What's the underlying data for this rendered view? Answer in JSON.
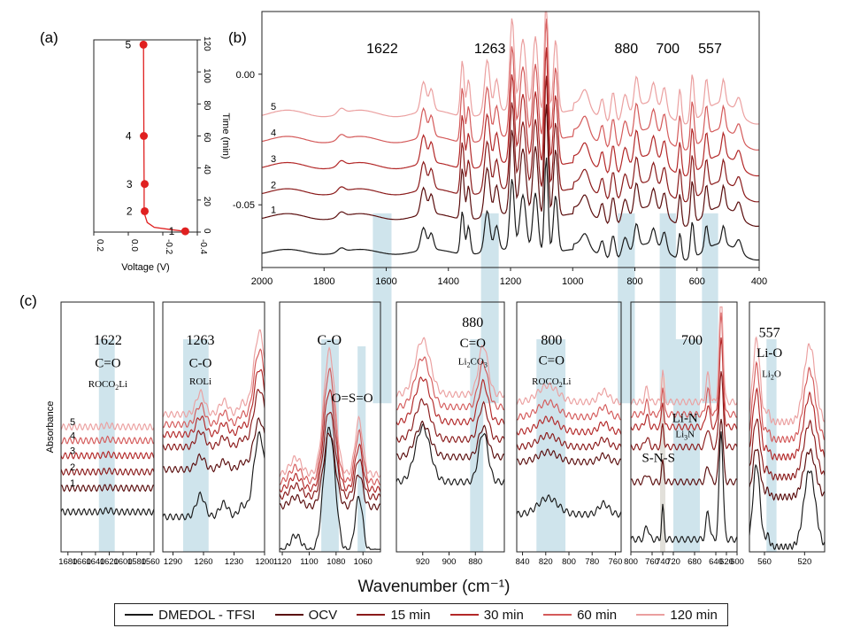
{
  "panel_labels": [
    "(a)",
    "(b)",
    "(c)"
  ],
  "main_xlabel": "Wavenumber (cm⁻¹)",
  "series_colors": [
    "#1a1a1a",
    "#5a0d0d",
    "#8a1a1a",
    "#b32828",
    "#d45a5a",
    "#eba0a0"
  ],
  "legend": [
    {
      "label": "DMEDOL - TFSI",
      "color": "#1a1a1a"
    },
    {
      "label": "OCV",
      "color": "#5a0d0d"
    },
    {
      "label": "15 min",
      "color": "#8a1a1a"
    },
    {
      "label": "30 min",
      "color": "#b32828"
    },
    {
      "label": "60 min",
      "color": "#d45a5a"
    },
    {
      "label": "120 min",
      "color": "#eba0a0"
    }
  ],
  "chart_data": [
    {
      "id": "a",
      "type": "scatter",
      "xlabel": "Voltage (V)",
      "ylabel": "Time (min)",
      "x_reversed": true,
      "xlim": [
        0.2,
        -0.4
      ],
      "ylim": [
        0,
        120
      ],
      "xticks": [
        "0.2",
        "0.0",
        "-0.2",
        "-0.4"
      ],
      "yticks": [
        "0",
        "20",
        "40",
        "60",
        "80",
        "100",
        "120"
      ],
      "curve": [
        [
          -0.33,
          0.5
        ],
        [
          -0.25,
          1.5
        ],
        [
          -0.15,
          3
        ],
        [
          -0.11,
          6
        ],
        [
          -0.095,
          11
        ],
        [
          -0.092,
          15
        ],
        [
          -0.092,
          28
        ],
        [
          -0.09,
          60
        ],
        [
          -0.088,
          117
        ]
      ],
      "points": [
        {
          "label": "1",
          "x": -0.33,
          "y": 0.5
        },
        {
          "label": "2",
          "x": -0.095,
          "y": 13
        },
        {
          "label": "3",
          "x": -0.095,
          "y": 30
        },
        {
          "label": "4",
          "x": -0.09,
          "y": 60
        },
        {
          "label": "5",
          "x": -0.088,
          "y": 117
        }
      ],
      "point_color": "#e02020"
    },
    {
      "id": "b",
      "type": "line",
      "x_reversed": true,
      "xlim": [
        2000,
        400
      ],
      "ylim": [
        -0.074,
        0.024
      ],
      "xticks": [
        "2000",
        "1800",
        "1600",
        "1400",
        "1200",
        "1000",
        "800",
        "600",
        "400"
      ],
      "yticks": [
        {
          "value": 0.0,
          "label": "0.00"
        },
        {
          "value": -0.05,
          "label": "-0.05"
        }
      ],
      "bands": [
        {
          "label": "1622",
          "from": 1643,
          "to": 1583
        },
        {
          "label": "1263",
          "from": 1295,
          "to": 1238
        },
        {
          "label": "880",
          "from": 855,
          "to": 800
        },
        {
          "label": "700",
          "from": 720,
          "to": 668
        },
        {
          "label": "557",
          "from": 584,
          "to": 532
        }
      ],
      "curve_labels": [
        "1",
        "2",
        "3",
        "4",
        "5"
      ],
      "series": [
        {
          "name": "DMEDOL - TFSI",
          "offset": -0.068,
          "scale": 0.78
        },
        {
          "name": "OCV",
          "offset": -0.0545,
          "scale": 0.93
        },
        {
          "name": "15 min",
          "offset": -0.045,
          "scale": 0.96
        },
        {
          "name": "30 min",
          "offset": -0.035,
          "scale": 0.98
        },
        {
          "name": "60 min",
          "offset": -0.025,
          "scale": 1.0
        },
        {
          "name": "120 min",
          "offset": -0.015,
          "scale": 1.02
        }
      ],
      "peaks": [
        [
          1745,
          0.002,
          15
        ],
        [
          1480,
          0.011,
          12
        ],
        [
          1455,
          0.008,
          10
        ],
        [
          1355,
          0.021,
          8
        ],
        [
          1335,
          0.014,
          8
        ],
        [
          1275,
          0.02,
          12
        ],
        [
          1245,
          0.012,
          10
        ],
        [
          1195,
          0.035,
          10
        ],
        [
          1160,
          0.028,
          14
        ],
        [
          1120,
          0.03,
          12
        ],
        [
          1085,
          0.048,
          8
        ],
        [
          1055,
          0.028,
          10
        ],
        [
          960,
          0.006,
          16
        ],
        [
          905,
          0.008,
          10
        ],
        [
          870,
          0.012,
          10
        ],
        [
          832,
          0.009,
          12
        ],
        [
          795,
          0.012,
          10
        ],
        [
          740,
          0.008,
          10
        ],
        [
          705,
          0.009,
          10
        ],
        [
          655,
          0.013,
          7
        ],
        [
          615,
          0.018,
          8
        ],
        [
          570,
          0.012,
          8
        ],
        [
          515,
          0.009,
          8
        ],
        [
          465,
          0.006,
          12
        ]
      ]
    },
    {
      "id": "c1",
      "type": "line",
      "x_reversed": true,
      "xlim": [
        1690,
        1555
      ],
      "ylim": [
        0,
        1
      ],
      "xticks": [
        {
          "value": 1680,
          "label": "1680"
        },
        {
          "value": 1660,
          "label": "1660"
        },
        {
          "value": 1640,
          "label": "1640"
        },
        {
          "value": 1620,
          "label": "1620"
        },
        {
          "value": 1600,
          "label": "1600"
        },
        {
          "value": 1580,
          "label": "1580"
        },
        {
          "value": 1560,
          "label": "1560"
        }
      ],
      "band": [
        1635,
        1612
      ],
      "annotations": [
        {
          "text": "1622",
          "x": 1622,
          "y": 0.83,
          "size": 16
        },
        {
          "text": "C=O",
          "x": 1622,
          "y": 0.74,
          "size": 15
        }
      ],
      "sub_annotations": [
        {
          "main": "ROCO",
          "sub": "2",
          "tail": "Li",
          "x": 1622,
          "y": 0.66,
          "size": 11
        }
      ],
      "curve_labels": [
        "1",
        "2",
        "3",
        "4",
        "5"
      ],
      "show_ylabel": true,
      "peaks": [
        [
          1622,
          0.006,
          8
        ]
      ],
      "offsets": [
        0.16,
        0.255,
        0.32,
        0.385,
        0.445,
        0.5
      ]
    },
    {
      "id": "c2",
      "type": "line",
      "x_reversed": true,
      "xlim": [
        1300,
        1200
      ],
      "ylim": [
        0,
        1
      ],
      "xticks": [
        {
          "value": 1290,
          "label": "1290"
        },
        {
          "value": 1260,
          "label": "1260"
        },
        {
          "value": 1230,
          "label": "1230"
        },
        {
          "value": 1200,
          "label": "1200"
        }
      ],
      "band": [
        1280,
        1255
      ],
      "annotations": [
        {
          "text": "1263",
          "x": 1263,
          "y": 0.83,
          "size": 16
        },
        {
          "text": "C-O",
          "x": 1263,
          "y": 0.74,
          "size": 15
        },
        {
          "text": "ROLi",
          "x": 1263,
          "y": 0.67,
          "size": 11
        }
      ],
      "peaks": [
        [
          1263,
          0.08,
          6
        ],
        [
          1240,
          0.05,
          6
        ],
        [
          1222,
          0.04,
          5
        ],
        [
          1205,
          0.3,
          8
        ]
      ],
      "offsets": [
        0.14,
        0.33,
        0.42,
        0.47,
        0.51,
        0.55
      ]
    },
    {
      "id": "c3",
      "type": "line",
      "x_reversed": true,
      "xlim": [
        1122,
        1047
      ],
      "ylim": [
        0,
        1
      ],
      "xticks": [
        {
          "value": 1120,
          "label": "1120"
        },
        {
          "value": 1100,
          "label": "1100"
        },
        {
          "value": 1080,
          "label": "1080"
        },
        {
          "value": 1060,
          "label": "1060"
        }
      ],
      "band": [
        1091,
        1078
      ],
      "band2": [
        1064,
        1058
      ],
      "annotations": [
        {
          "text": "C-O",
          "x": 1085,
          "y": 0.83,
          "size": 16
        },
        {
          "text": "O=S=O",
          "x": 1068,
          "y": 0.6,
          "size": 15
        }
      ],
      "peaks": [
        [
          1085,
          0.45,
          6
        ],
        [
          1063,
          0.2,
          4
        ],
        [
          1110,
          0.06,
          6
        ]
      ],
      "offsets": [
        0.0,
        0.18,
        0.22,
        0.25,
        0.28,
        0.31
      ]
    },
    {
      "id": "c4",
      "type": "line",
      "x_reversed": true,
      "xlim": [
        940,
        858
      ],
      "ylim": [
        0,
        1
      ],
      "xticks": [
        {
          "value": 920,
          "label": "920"
        },
        {
          "value": 900,
          "label": "900"
        },
        {
          "value": 880,
          "label": "880"
        }
      ],
      "band": [
        884,
        874
      ],
      "annotations": [
        {
          "text": "880",
          "x": 882,
          "y": 0.9,
          "size": 16
        },
        {
          "text": "C=O",
          "x": 882,
          "y": 0.82,
          "size": 15
        }
      ],
      "sub_annotations": [
        {
          "main": "Li",
          "sub": "2",
          "tail": "CO",
          "sub2": "3",
          "x": 882,
          "y": 0.75,
          "size": 11
        }
      ],
      "peaks": [
        [
          920,
          0.2,
          8
        ],
        [
          874,
          0.18,
          5
        ]
      ],
      "offsets": [
        0.28,
        0.38,
        0.45,
        0.52,
        0.58,
        0.63
      ]
    },
    {
      "id": "c5",
      "type": "line",
      "x_reversed": true,
      "xlim": [
        845,
        755
      ],
      "ylim": [
        0,
        1
      ],
      "xticks": [
        {
          "value": 840,
          "label": "840"
        },
        {
          "value": 820,
          "label": "820"
        },
        {
          "value": 800,
          "label": "800"
        },
        {
          "value": 780,
          "label": "780"
        },
        {
          "value": 760,
          "label": "760"
        }
      ],
      "band": [
        828,
        803
      ],
      "annotations": [
        {
          "text": "800",
          "x": 815,
          "y": 0.83,
          "size": 16
        },
        {
          "text": "C=O",
          "x": 815,
          "y": 0.75,
          "size": 15
        }
      ],
      "sub_annotations": [
        {
          "main": "ROCO",
          "sub": "2",
          "tail": "Li",
          "x": 815,
          "y": 0.67,
          "size": 11
        }
      ],
      "peaks": [
        [
          818,
          0.06,
          12
        ],
        [
          770,
          0.04,
          6
        ]
      ],
      "offsets": [
        0.15,
        0.36,
        0.42,
        0.48,
        0.54,
        0.6
      ]
    },
    {
      "id": "c6",
      "type": "line",
      "x_reversed": true,
      "xlim": [
        800,
        600
      ],
      "ylim": [
        0,
        1
      ],
      "xticks": [
        {
          "value": 800,
          "label": "800"
        },
        {
          "value": 760,
          "label": "760"
        },
        {
          "value": 740,
          "label": "740"
        },
        {
          "value": 720,
          "label": "720"
        },
        {
          "value": 680,
          "label": "680"
        },
        {
          "value": 640,
          "label": "640"
        },
        {
          "value": 620,
          "label": "620"
        },
        {
          "value": 600,
          "label": "600"
        }
      ],
      "band": [
        720,
        670
      ],
      "band_grey": [
        745,
        735
      ],
      "annotations": [
        {
          "text": "700",
          "x": 685,
          "y": 0.83,
          "size": 16
        },
        {
          "text": "Li-N",
          "x": 698,
          "y": 0.52,
          "size": 15
        },
        {
          "text": "S-N-S",
          "x": 748,
          "y": 0.36,
          "size": 15
        }
      ],
      "sub_annotations": [
        {
          "main": "Li",
          "sub": "3",
          "tail": "N",
          "x": 698,
          "y": 0.46,
          "size": 11
        }
      ],
      "peaks": [
        [
          740,
          0.12,
          3
        ],
        [
          655,
          0.1,
          5
        ],
        [
          630,
          0.4,
          5
        ],
        [
          770,
          0.05,
          5
        ]
      ],
      "offsets": [
        0.05,
        0.28,
        0.42,
        0.5,
        0.55,
        0.6
      ]
    },
    {
      "id": "c7",
      "type": "line",
      "x_reversed": true,
      "xlim": [
        575,
        500
      ],
      "ylim": [
        0,
        1
      ],
      "xticks": [
        {
          "value": 560,
          "label": "560"
        },
        {
          "value": 520,
          "label": "520"
        }
      ],
      "band": [
        558,
        548
      ],
      "annotations": [
        {
          "text": "557",
          "x": 555,
          "y": 0.86,
          "size": 16
        },
        {
          "text": "Li-O",
          "x": 555,
          "y": 0.78,
          "size": 15
        }
      ],
      "sub_annotations": [
        {
          "main": "Li",
          "sub": "2",
          "tail": "O",
          "x": 553,
          "y": 0.7,
          "size": 11
        }
      ],
      "peaks": [
        [
          568,
          0.3,
          5
        ],
        [
          515,
          0.28,
          8
        ],
        [
          557,
          0.04,
          3
        ]
      ],
      "offsets": [
        0.02,
        0.22,
        0.3,
        0.38,
        0.45,
        0.52
      ]
    }
  ],
  "c_ylabel": "Absorbance"
}
